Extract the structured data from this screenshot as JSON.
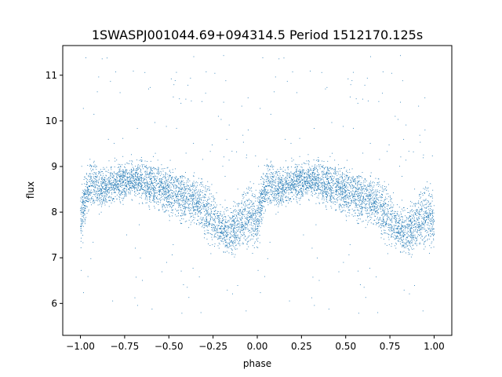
{
  "chart_data": {
    "type": "scatter",
    "title": "1SWASPJ001044.69+094314.5 Period 1512170.125s",
    "xlabel": "phase",
    "ylabel": "flux",
    "xlim": [
      -1.1,
      1.1
    ],
    "ylim": [
      5.3,
      11.65
    ],
    "xticks": [
      -1.0,
      -0.75,
      -0.5,
      -0.25,
      0.0,
      0.25,
      0.5,
      0.75,
      1.0
    ],
    "xtick_labels": [
      "−1.00",
      "−0.75",
      "−0.50",
      "−0.25",
      "0.00",
      "0.25",
      "0.50",
      "0.75",
      "1.00"
    ],
    "yticks": [
      6,
      7,
      8,
      9,
      10,
      11
    ],
    "ytick_labels": [
      "6",
      "7",
      "8",
      "9",
      "10",
      "11"
    ],
    "grid": false,
    "marker_color": "#1f77b4",
    "profile": {
      "phase": [
        0.0,
        0.02,
        0.05,
        0.08,
        0.12,
        0.18,
        0.25,
        0.32,
        0.4,
        0.48,
        0.55,
        0.62,
        0.68,
        0.72,
        0.75,
        0.8,
        0.85,
        0.9,
        0.95,
        1.0
      ],
      "flux_center": [
        7.8,
        8.2,
        8.6,
        8.6,
        8.5,
        8.6,
        8.7,
        8.7,
        8.6,
        8.5,
        8.4,
        8.3,
        8.2,
        8.0,
        7.9,
        7.6,
        7.6,
        7.8,
        7.9,
        7.8
      ],
      "flux_halfwidth": [
        0.5,
        0.5,
        0.45,
        0.4,
        0.4,
        0.35,
        0.35,
        0.35,
        0.4,
        0.45,
        0.45,
        0.45,
        0.45,
        0.5,
        0.5,
        0.4,
        0.45,
        0.5,
        0.55,
        0.5
      ]
    }
  }
}
